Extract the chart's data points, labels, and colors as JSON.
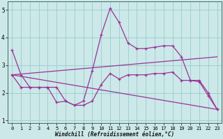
{
  "xlabel": "Windchill (Refroidissement éolien,°C)",
  "bg_color": "#cce8e8",
  "grid_color": "#99cccc",
  "line_color": "#993399",
  "xlim": [
    -0.5,
    23.5
  ],
  "ylim": [
    0.9,
    5.3
  ],
  "xticks": [
    0,
    1,
    2,
    3,
    4,
    5,
    6,
    7,
    8,
    9,
    10,
    11,
    12,
    13,
    14,
    15,
    16,
    17,
    18,
    19,
    20,
    21,
    22,
    23
  ],
  "yticks": [
    1,
    2,
    3,
    4,
    5
  ],
  "line1_x": [
    0,
    1,
    2,
    3,
    4,
    5,
    6,
    7,
    8,
    9,
    10,
    11,
    12,
    13,
    14,
    15,
    16,
    17,
    18,
    19,
    20,
    21,
    22,
    23
  ],
  "line1_y": [
    3.55,
    2.65,
    2.2,
    2.2,
    2.2,
    1.65,
    1.7,
    1.55,
    1.7,
    2.8,
    4.1,
    5.05,
    4.55,
    3.8,
    3.6,
    3.6,
    3.65,
    3.7,
    3.7,
    3.3,
    2.45,
    2.4,
    1.9,
    1.4
  ],
  "line2_x": [
    0,
    1,
    2,
    3,
    4,
    5,
    6,
    7,
    8,
    9,
    10,
    11,
    12,
    13,
    14,
    15,
    16,
    17,
    18,
    19,
    20,
    21,
    22,
    23
  ],
  "line2_y": [
    2.65,
    2.2,
    2.2,
    2.2,
    2.2,
    2.2,
    1.7,
    1.55,
    1.55,
    1.7,
    2.3,
    2.7,
    2.5,
    2.65,
    2.65,
    2.65,
    2.7,
    2.7,
    2.75,
    2.45,
    2.45,
    2.45,
    2.0,
    1.4
  ],
  "line3_x": [
    0,
    23
  ],
  "line3_y": [
    2.65,
    3.3
  ],
  "line4_x": [
    0,
    23
  ],
  "line4_y": [
    2.65,
    1.4
  ],
  "figsize": [
    3.2,
    2.0
  ],
  "dpi": 100
}
